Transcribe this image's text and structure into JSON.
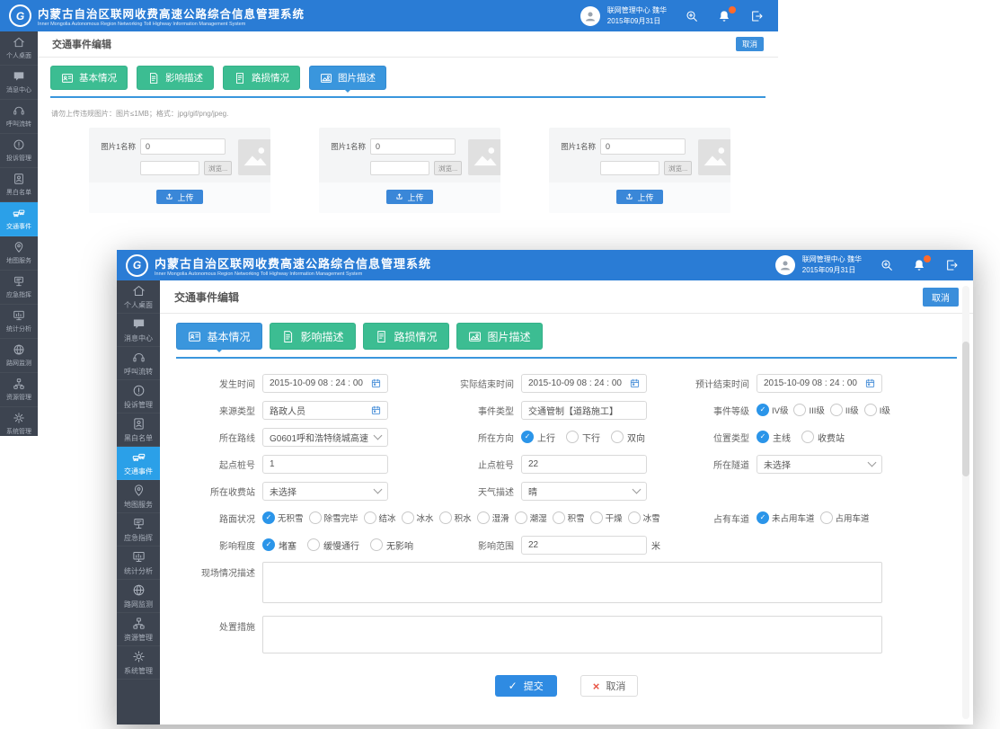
{
  "app": {
    "title_cn": "内蒙古自治区联网收费高速公路综合信息管理系统",
    "title_en": "Inner Mongolia Autonomous Region Networking Toll Highway Information Management System",
    "logo_letter": "G",
    "user_name": "联网管理中心 魏华",
    "date": "2015年09月31日",
    "accent_blue": "#2a7cd5"
  },
  "sidebar": {
    "active_index": 5,
    "items": [
      {
        "id": "desktop",
        "label": "个人桌面",
        "icon": "home"
      },
      {
        "id": "message",
        "label": "消息中心",
        "icon": "message"
      },
      {
        "id": "call",
        "label": "呼叫流转",
        "icon": "headset"
      },
      {
        "id": "complaint",
        "label": "投诉管理",
        "icon": "complaint"
      },
      {
        "id": "blacklist",
        "label": "黑白名单",
        "icon": "blacklist"
      },
      {
        "id": "traffic",
        "label": "交通事件",
        "icon": "traffic"
      },
      {
        "id": "map",
        "label": "地图服务",
        "icon": "map"
      },
      {
        "id": "emergency",
        "label": "应急指挥",
        "icon": "emergency"
      },
      {
        "id": "stats",
        "label": "统计分析",
        "icon": "stats"
      },
      {
        "id": "monitor",
        "label": "路网监测",
        "icon": "monitor"
      },
      {
        "id": "resource",
        "label": "资源管理",
        "icon": "resource"
      },
      {
        "id": "system",
        "label": "系统管理",
        "icon": "system"
      }
    ]
  },
  "page": {
    "title": "交通事件编辑",
    "cancel_label": "取消",
    "tabs": [
      {
        "label": "基本情况",
        "icon": "basic"
      },
      {
        "label": "影响描述",
        "icon": "impact"
      },
      {
        "label": "路损情况",
        "icon": "damage"
      },
      {
        "label": "图片描述",
        "icon": "photo"
      }
    ]
  },
  "windows": {
    "back": {
      "active_tab": 3
    },
    "front": {
      "active_tab": 0
    }
  },
  "upload": {
    "note": "请勿上传违规图片：图片≤1MB；格式：jpg/gif/png/jpeg.",
    "browse_label": "浏览...",
    "upload_label": "上传",
    "cards": [
      {
        "name_label": "图片1名称",
        "name_value": "0",
        "file_value": ""
      },
      {
        "name_label": "图片1名称",
        "name_value": "0",
        "file_value": ""
      },
      {
        "name_label": "图片1名称",
        "name_value": "0",
        "file_value": ""
      }
    ]
  },
  "form": {
    "rows": [
      {
        "cells": [
          {
            "label": "发生时间",
            "type": "date",
            "value": "2015-10-09  08 : 24 : 00"
          },
          {
            "label": "实际结束时间",
            "type": "date",
            "value": "2015-10-09  08 : 24 : 00"
          },
          {
            "label": "预计结束时间",
            "type": "date",
            "value": "2015-10-09  08 : 24 : 00"
          }
        ]
      },
      {
        "cells": [
          {
            "label": "来源类型",
            "type": "date",
            "value": "路政人员"
          },
          {
            "label": "事件类型",
            "type": "text",
            "value": "交通管制【道路施工】"
          },
          {
            "label": "事件等级",
            "type": "radios",
            "tight": true,
            "options": [
              "IV级",
              "III级",
              "II级",
              "I级"
            ],
            "selected": 0
          }
        ]
      },
      {
        "cells": [
          {
            "label": "所在路线",
            "type": "select",
            "value": "G0601呼和浩特绕城高速"
          },
          {
            "label": "所在方向",
            "type": "radios",
            "options": [
              "上行",
              "下行",
              "双向"
            ],
            "selected": 0
          },
          {
            "label": "位置类型",
            "type": "radios",
            "options": [
              "主线",
              "收费站"
            ],
            "selected": 0
          }
        ]
      },
      {
        "cells": [
          {
            "label": "起点桩号",
            "type": "text",
            "value": "1"
          },
          {
            "label": "止点桩号",
            "type": "text",
            "value": "22"
          },
          {
            "label": "所在隧道",
            "type": "select",
            "value": "未选择"
          }
        ]
      },
      {
        "cells": [
          {
            "label": "所在收费站",
            "type": "select",
            "value": "未选择"
          },
          {
            "label": "天气描述",
            "type": "select",
            "value": "晴"
          },
          {
            "label": "",
            "type": "empty"
          }
        ]
      },
      {
        "cells": [
          {
            "label": "路面状况",
            "type": "radios",
            "tight": true,
            "wide": true,
            "options": [
              "无积雪",
              "除雪完毕",
              "结冰",
              "冰水",
              "积水",
              "湿滑",
              "潮湿",
              "积雪",
              "干燥",
              "冰雪"
            ],
            "selected": 0
          },
          {
            "label": "占有车道",
            "type": "radios",
            "tight": true,
            "options": [
              "未占用车道",
              "占用车道"
            ],
            "selected": 0
          }
        ]
      },
      {
        "cells": [
          {
            "label": "影响程度",
            "type": "radios",
            "options": [
              "堵塞",
              "缓慢通行",
              "无影响"
            ],
            "selected": 0
          },
          {
            "label": "影响范围",
            "type": "text",
            "value": "22",
            "suffix": "米"
          },
          {
            "label": "",
            "type": "empty"
          }
        ]
      },
      {
        "cells": [
          {
            "label": "现场情况描述",
            "type": "textarea",
            "value": "",
            "h": 46,
            "full": true
          }
        ]
      },
      {
        "cells": [
          {
            "label": "处置措施",
            "type": "textarea",
            "value": "",
            "h": 42,
            "full": true
          }
        ]
      }
    ],
    "submit_label": "提交",
    "cancel_label": "取消"
  },
  "colors": {
    "tab_green": "#3cbd92",
    "tab_active_blue": "#3a96dd",
    "sidebar_active": "#2ba0e8",
    "radio_checked": "#2b95e9"
  }
}
